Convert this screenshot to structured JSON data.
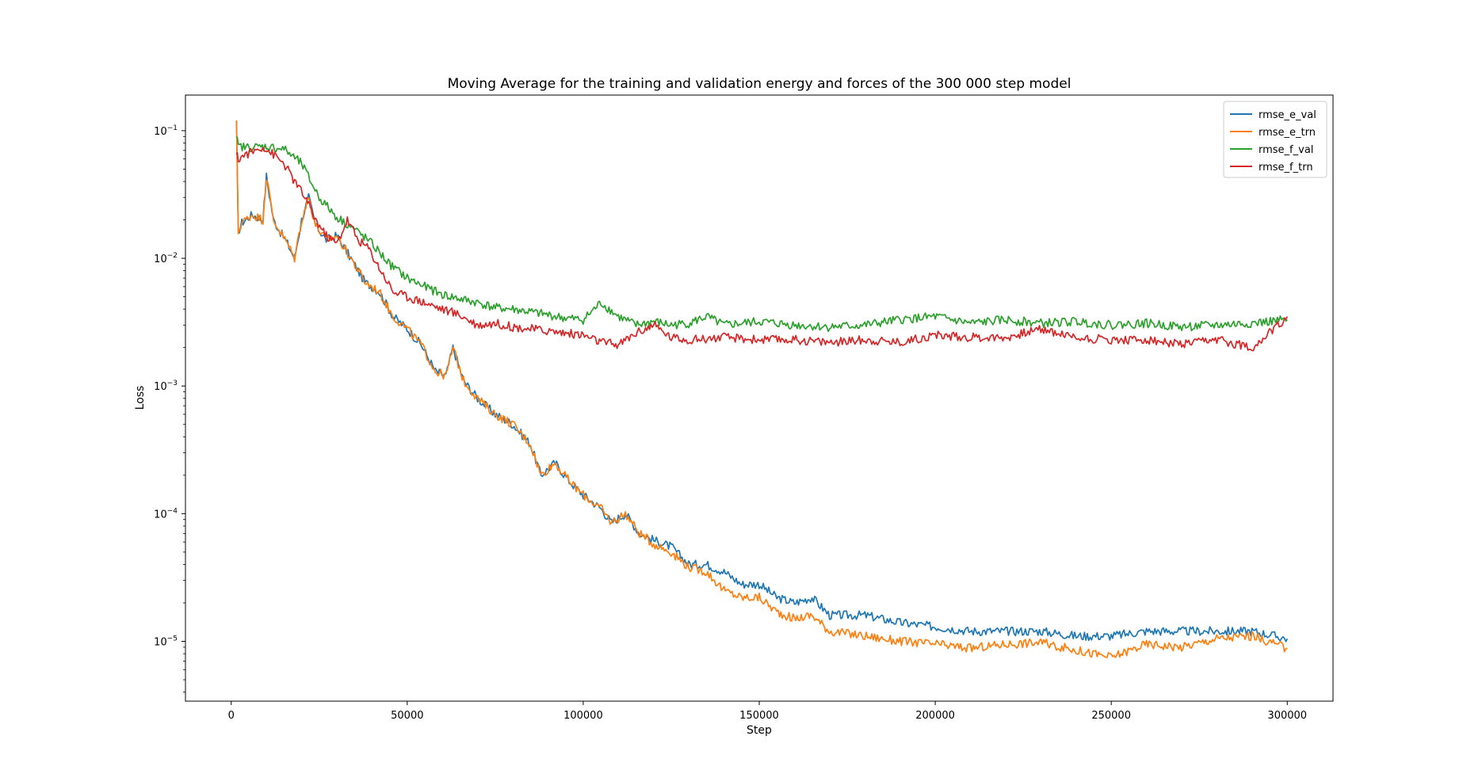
{
  "chart_data": {
    "type": "line",
    "title": "Moving Average for the training and validation energy and forces of the 300 000 step model",
    "xlabel": "Step",
    "ylabel": "Loss",
    "xlim": [
      -13000,
      313000
    ],
    "ylim": [
      3.4e-06,
      0.19
    ],
    "y_scale": "log",
    "x_ticks": [
      0,
      50000,
      100000,
      150000,
      200000,
      250000,
      300000
    ],
    "x_tick_labels": [
      "0",
      "50000",
      "100000",
      "150000",
      "200000",
      "250000",
      "300000"
    ],
    "y_ticks": [
      1e-05,
      0.0001,
      0.001,
      0.01,
      0.1
    ],
    "y_tick_labels": [
      {
        "base": "10",
        "exp": "−5"
      },
      {
        "base": "10",
        "exp": "−4"
      },
      {
        "base": "10",
        "exp": "−3"
      },
      {
        "base": "10",
        "exp": "−2"
      },
      {
        "base": "10",
        "exp": "−1"
      }
    ],
    "grid": false,
    "legend_position": "top-right",
    "series": [
      {
        "name": "rmse_e_val",
        "color": "#1f77b4",
        "x": [
          1500,
          2000,
          3000,
          6000,
          9000,
          10000,
          12000,
          14000,
          16000,
          18000,
          20000,
          22000,
          24000,
          27000,
          30000,
          34000,
          38000,
          42000,
          46000,
          50000,
          54000,
          58000,
          61000,
          63000,
          66000,
          70000,
          75000,
          80000,
          85000,
          88000,
          92000,
          96000,
          100000,
          105000,
          108000,
          112000,
          116000,
          120000,
          125000,
          130000,
          135000,
          140000,
          145000,
          150000,
          155000,
          160000,
          165000,
          170000,
          180000,
          190000,
          200000,
          210000,
          220000,
          230000,
          240000,
          250000,
          260000,
          270000,
          280000,
          290000,
          300000
        ],
        "y": [
          0.12,
          0.016,
          0.019,
          0.022,
          0.02,
          0.044,
          0.02,
          0.016,
          0.013,
          0.01,
          0.02,
          0.03,
          0.018,
          0.014,
          0.015,
          0.01,
          0.0065,
          0.0055,
          0.0035,
          0.0028,
          0.0021,
          0.0013,
          0.0012,
          0.002,
          0.0011,
          0.0008,
          0.0006,
          0.0005,
          0.00035,
          0.0002,
          0.00025,
          0.00018,
          0.00014,
          0.00011,
          8.5e-05,
          0.0001,
          7e-05,
          6.2e-05,
          5.5e-05,
          4e-05,
          4e-05,
          3.5e-05,
          2.8e-05,
          2.8e-05,
          2.2e-05,
          2e-05,
          2.2e-05,
          1.6e-05,
          1.6e-05,
          1.4e-05,
          1.3e-05,
          1.2e-05,
          1.2e-05,
          1.2e-05,
          1.1e-05,
          1.1e-05,
          1.2e-05,
          1.2e-05,
          1.2e-05,
          1.2e-05,
          1.05e-05
        ]
      },
      {
        "name": "rmse_e_trn",
        "color": "#ff7f0e",
        "x": [
          1500,
          2000,
          3000,
          6000,
          9000,
          10000,
          12000,
          14000,
          16000,
          18000,
          20000,
          22000,
          24000,
          27000,
          30000,
          34000,
          38000,
          42000,
          46000,
          50000,
          54000,
          58000,
          61000,
          63000,
          66000,
          70000,
          75000,
          80000,
          85000,
          88000,
          92000,
          96000,
          100000,
          105000,
          108000,
          112000,
          116000,
          120000,
          125000,
          130000,
          135000,
          140000,
          145000,
          150000,
          155000,
          160000,
          165000,
          170000,
          180000,
          190000,
          200000,
          210000,
          220000,
          230000,
          240000,
          250000,
          260000,
          270000,
          280000,
          290000,
          300000
        ],
        "y": [
          0.12,
          0.016,
          0.019,
          0.022,
          0.02,
          0.044,
          0.02,
          0.016,
          0.013,
          0.01,
          0.02,
          0.03,
          0.018,
          0.014,
          0.015,
          0.01,
          0.0065,
          0.0055,
          0.0035,
          0.0028,
          0.0021,
          0.0013,
          0.0012,
          0.002,
          0.0011,
          0.0008,
          0.0006,
          0.0005,
          0.00035,
          0.0002,
          0.00025,
          0.00018,
          0.00014,
          0.00011,
          8.5e-05,
          0.0001,
          7e-05,
          5.8e-05,
          5e-05,
          3.8e-05,
          3.5e-05,
          2.5e-05,
          2.2e-05,
          2.2e-05,
          1.7e-05,
          1.5e-05,
          1.6e-05,
          1.2e-05,
          1.1e-05,
          1e-05,
          9.5e-06,
          8.8e-06,
          9.5e-06,
          9.8e-06,
          8.5e-06,
          7.5e-06,
          9.5e-06,
          9e-06,
          1.05e-05,
          1.1e-05,
          8.8e-06
        ]
      },
      {
        "name": "rmse_f_val",
        "color": "#2ca02c",
        "x": [
          1500,
          2000,
          5000,
          10000,
          15000,
          20000,
          25000,
          30000,
          35000,
          40000,
          45000,
          50000,
          55000,
          60000,
          65000,
          70000,
          75000,
          80000,
          85000,
          90000,
          95000,
          100000,
          105000,
          110000,
          115000,
          120000,
          125000,
          130000,
          135000,
          140000,
          150000,
          160000,
          170000,
          180000,
          190000,
          200000,
          210000,
          220000,
          230000,
          240000,
          250000,
          260000,
          270000,
          280000,
          290000,
          300000
        ],
        "y": [
          0.09,
          0.075,
          0.074,
          0.075,
          0.072,
          0.055,
          0.03,
          0.021,
          0.017,
          0.013,
          0.009,
          0.007,
          0.006,
          0.0052,
          0.0048,
          0.0045,
          0.0041,
          0.004,
          0.0038,
          0.0036,
          0.0034,
          0.0033,
          0.0045,
          0.0035,
          0.003,
          0.0032,
          0.003,
          0.0031,
          0.0035,
          0.003,
          0.0032,
          0.003,
          0.0029,
          0.003,
          0.0033,
          0.0035,
          0.0031,
          0.0033,
          0.0031,
          0.0032,
          0.003,
          0.0031,
          0.0029,
          0.003,
          0.0031,
          0.0033
        ]
      },
      {
        "name": "rmse_f_trn",
        "color": "#d62728",
        "x": [
          1500,
          2000,
          4000,
          7000,
          9000,
          12000,
          15000,
          18000,
          21000,
          24000,
          27000,
          30000,
          33000,
          36000,
          39000,
          42000,
          46000,
          50000,
          55000,
          60000,
          65000,
          70000,
          75000,
          80000,
          85000,
          90000,
          95000,
          100000,
          105000,
          110000,
          115000,
          120000,
          125000,
          130000,
          140000,
          150000,
          160000,
          170000,
          180000,
          190000,
          200000,
          210000,
          220000,
          230000,
          240000,
          250000,
          260000,
          270000,
          280000,
          290000,
          295000,
          300000
        ],
        "y": [
          0.065,
          0.06,
          0.065,
          0.07,
          0.075,
          0.065,
          0.055,
          0.04,
          0.03,
          0.02,
          0.015,
          0.013,
          0.02,
          0.014,
          0.012,
          0.0085,
          0.0055,
          0.005,
          0.0045,
          0.004,
          0.0036,
          0.003,
          0.0031,
          0.0029,
          0.0028,
          0.0027,
          0.0026,
          0.0025,
          0.0022,
          0.0021,
          0.0026,
          0.003,
          0.0024,
          0.0023,
          0.0024,
          0.0023,
          0.0023,
          0.0022,
          0.0023,
          0.0022,
          0.0025,
          0.0024,
          0.0024,
          0.0028,
          0.0024,
          0.0023,
          0.0023,
          0.0021,
          0.0023,
          0.002,
          0.0026,
          0.0035
        ]
      }
    ]
  }
}
